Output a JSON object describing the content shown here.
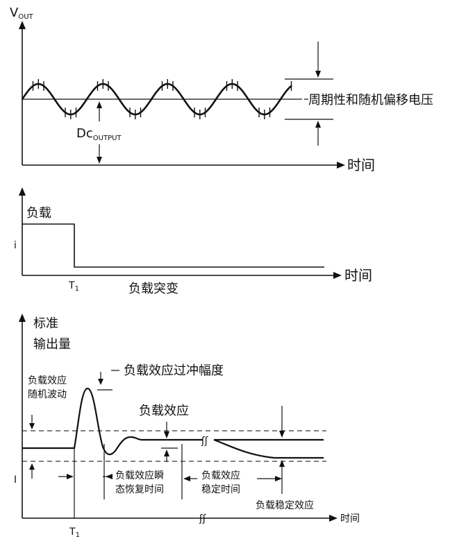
{
  "panel1": {
    "y_axis": "V",
    "y_axis_sub": "OUT",
    "dc_label": "Dc",
    "dc_label_sub": "OUTPUT",
    "noise_label": "周期性和随机偏移电压",
    "x_axis": "时间"
  },
  "panel2": {
    "y_axis": "i",
    "load_label": "负载",
    "t1": "T",
    "t1_sub": "1",
    "x_axis": "时间",
    "caption": "负载突变"
  },
  "panel3": {
    "y_axis_line1": "标准",
    "y_axis_line2": "输出量",
    "y_axis_i": "I",
    "random_line1": "负载效应",
    "random_line2": "随机波动",
    "overshoot": "负载效应过冲幅度",
    "load_effect": "负载效应",
    "transient_line1": "负载效应瞬",
    "transient_line2": "态恢复时间",
    "settle_line1": "负载效应",
    "settle_line2": "稳定时间",
    "stable_effect": "负载稳定效应",
    "t1": "T",
    "t1_sub": "1",
    "x_axis": "时间"
  }
}
